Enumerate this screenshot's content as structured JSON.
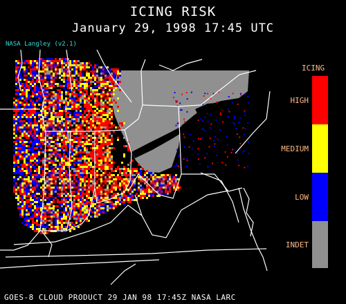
{
  "header": {
    "title": "ICING RISK",
    "subtitle": "January 29, 1998 17:45 UTC",
    "credit": "NASA Langley (v2.1)"
  },
  "legend": {
    "title": "ICING",
    "items": [
      {
        "label": "HIGH",
        "color": "#ff0000"
      },
      {
        "label": "MEDIUM",
        "color": "#ffff00"
      },
      {
        "label": "LOW",
        "color": "#0000ff"
      },
      {
        "label": "INDET",
        "color": "#909090"
      }
    ]
  },
  "footer": {
    "text": "GOES-8 CLOUD PRODUCT    29 JAN 98 17:45Z NASA LARC"
  },
  "colors": {
    "background": "#000000",
    "boundaries": "#ffffff",
    "label_text": "#ffbb88",
    "credit_text": "#33dddd"
  }
}
